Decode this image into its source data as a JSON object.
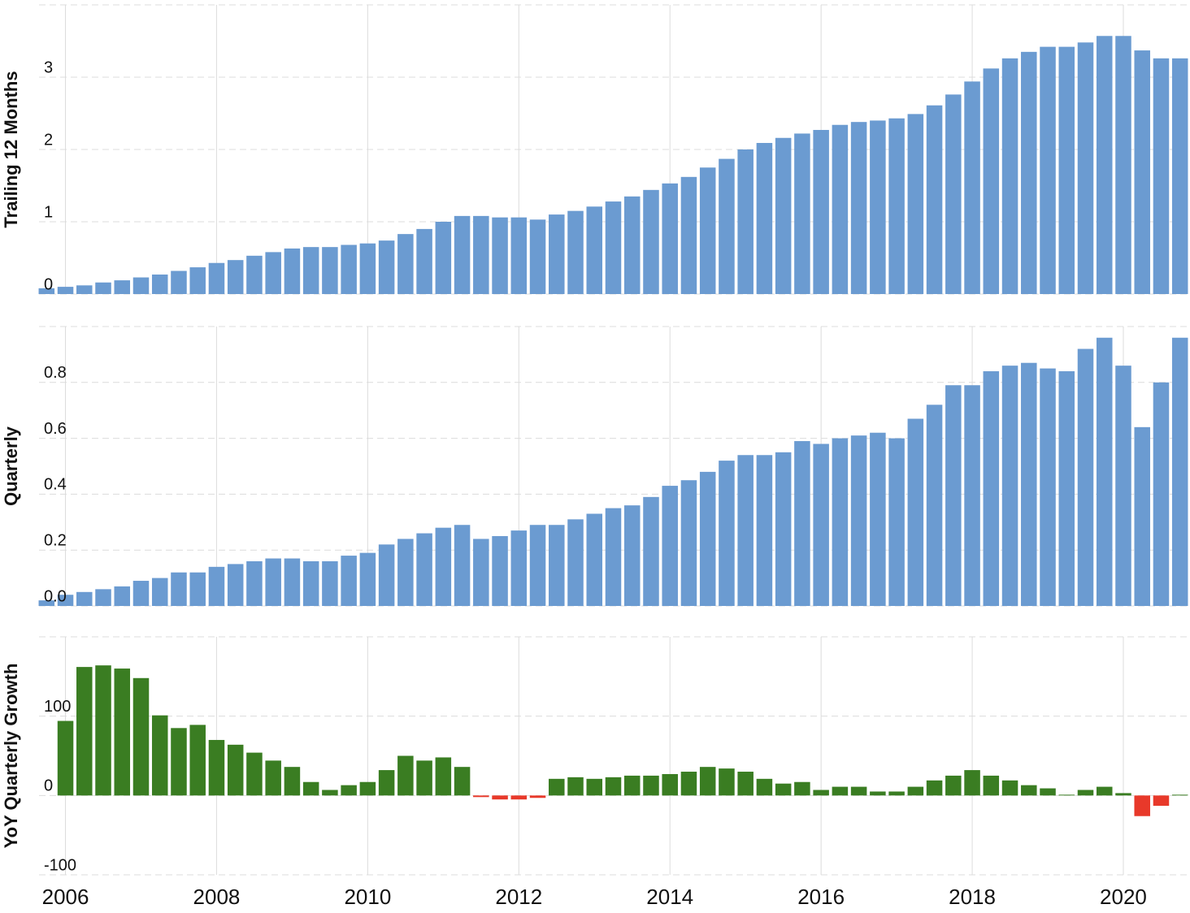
{
  "chart_data": [
    {
      "type": "bar",
      "y_label": "Trailing 12 Months",
      "color": "#6b9bd1",
      "grid": true,
      "x": [
        2005.75,
        2006,
        2006.25,
        2006.5,
        2006.75,
        2007,
        2007.25,
        2007.5,
        2007.75,
        2008,
        2008.25,
        2008.5,
        2008.75,
        2009,
        2009.25,
        2009.5,
        2009.75,
        2010,
        2010.25,
        2010.5,
        2010.75,
        2011,
        2011.25,
        2011.5,
        2011.75,
        2012,
        2012.25,
        2012.5,
        2012.75,
        2013,
        2013.25,
        2013.5,
        2013.75,
        2014,
        2014.25,
        2014.5,
        2014.75,
        2015,
        2015.25,
        2015.5,
        2015.75,
        2016,
        2016.25,
        2016.5,
        2016.75,
        2017,
        2017.25,
        2017.5,
        2017.75,
        2018,
        2018.25,
        2018.5,
        2018.75,
        2019,
        2019.25,
        2019.5,
        2019.75,
        2020,
        2020.25,
        2020.5,
        2020.75
      ],
      "values": [
        0.08,
        0.1,
        0.12,
        0.16,
        0.19,
        0.23,
        0.27,
        0.32,
        0.37,
        0.43,
        0.47,
        0.53,
        0.58,
        0.63,
        0.65,
        0.65,
        0.68,
        0.7,
        0.74,
        0.83,
        0.9,
        1.0,
        1.08,
        1.08,
        1.06,
        1.06,
        1.03,
        1.1,
        1.15,
        1.21,
        1.28,
        1.35,
        1.44,
        1.53,
        1.62,
        1.75,
        1.87,
        2.0,
        2.09,
        2.16,
        2.22,
        2.27,
        2.34,
        2.38,
        2.4,
        2.43,
        2.49,
        2.61,
        2.76,
        2.94,
        3.12,
        3.26,
        3.35,
        3.42,
        3.42,
        3.48,
        3.57,
        3.57,
        3.37,
        3.26,
        3.26
      ],
      "xlim": [
        2005.65,
        2020.85
      ],
      "ylim": [
        0,
        4
      ],
      "yticks": [
        0,
        1,
        2,
        3
      ]
    },
    {
      "type": "bar",
      "y_label": "Quarterly",
      "color": "#6b9bd1",
      "grid": true,
      "x": [
        2005.75,
        2006,
        2006.25,
        2006.5,
        2006.75,
        2007,
        2007.25,
        2007.5,
        2007.75,
        2008,
        2008.25,
        2008.5,
        2008.75,
        2009,
        2009.25,
        2009.5,
        2009.75,
        2010,
        2010.25,
        2010.5,
        2010.75,
        2011,
        2011.25,
        2011.5,
        2011.75,
        2012,
        2012.25,
        2012.5,
        2012.75,
        2013,
        2013.25,
        2013.5,
        2013.75,
        2014,
        2014.25,
        2014.5,
        2014.75,
        2015,
        2015.25,
        2015.5,
        2015.75,
        2016,
        2016.25,
        2016.5,
        2016.75,
        2017,
        2017.25,
        2017.5,
        2017.75,
        2018,
        2018.25,
        2018.5,
        2018.75,
        2019,
        2019.25,
        2019.5,
        2019.75,
        2020,
        2020.25,
        2020.5,
        2020.75
      ],
      "values": [
        0.02,
        0.04,
        0.05,
        0.06,
        0.07,
        0.09,
        0.1,
        0.12,
        0.12,
        0.14,
        0.15,
        0.16,
        0.17,
        0.17,
        0.16,
        0.16,
        0.18,
        0.19,
        0.22,
        0.24,
        0.26,
        0.28,
        0.29,
        0.24,
        0.25,
        0.27,
        0.29,
        0.29,
        0.31,
        0.33,
        0.35,
        0.36,
        0.39,
        0.43,
        0.45,
        0.48,
        0.52,
        0.54,
        0.54,
        0.55,
        0.59,
        0.58,
        0.6,
        0.61,
        0.62,
        0.6,
        0.67,
        0.72,
        0.79,
        0.79,
        0.84,
        0.86,
        0.87,
        0.85,
        0.84,
        0.92,
        0.96,
        0.86,
        0.64,
        0.8,
        0.96
      ],
      "xlim": [
        2005.65,
        2020.85
      ],
      "ylim": [
        0,
        1
      ],
      "yticks": [
        {
          "value": 0,
          "label": "0.0"
        },
        0.2,
        0.4,
        0.6,
        0.8
      ]
    },
    {
      "type": "bar",
      "y_label": "YoY Quarterly Growth",
      "color": "#3a7d22",
      "negative_color": "#e8392a",
      "grid": true,
      "x": [
        2005.75,
        2006,
        2006.25,
        2006.5,
        2006.75,
        2007,
        2007.25,
        2007.5,
        2007.75,
        2008,
        2008.25,
        2008.5,
        2008.75,
        2009,
        2009.25,
        2009.5,
        2009.75,
        2010,
        2010.25,
        2010.5,
        2010.75,
        2011,
        2011.25,
        2011.5,
        2011.75,
        2012,
        2012.25,
        2012.5,
        2012.75,
        2013,
        2013.25,
        2013.5,
        2013.75,
        2014,
        2014.25,
        2014.5,
        2014.75,
        2015,
        2015.25,
        2015.5,
        2015.75,
        2016,
        2016.25,
        2016.5,
        2016.75,
        2017,
        2017.25,
        2017.5,
        2017.75,
        2018,
        2018.25,
        2018.5,
        2018.75,
        2019,
        2019.25,
        2019.5,
        2019.75,
        2020,
        2020.25,
        2020.5,
        2020.75
      ],
      "values": [
        null,
        94,
        162,
        164,
        160,
        148,
        101,
        85,
        89,
        70,
        64,
        54,
        44,
        36,
        17,
        7,
        13,
        17,
        32,
        50,
        44,
        48,
        36,
        -2,
        -5,
        -5,
        -3,
        21,
        23,
        21,
        23,
        25,
        25,
        27,
        30,
        36,
        34,
        30,
        21,
        15,
        17,
        7,
        11,
        11,
        5,
        5,
        11,
        19,
        25,
        32,
        25,
        19,
        13,
        9,
        1,
        7,
        11,
        3,
        -26,
        -13,
        1
      ],
      "xlim": [
        2005.65,
        2020.85
      ],
      "ylim": [
        -100,
        200
      ],
      "yticks": [
        -100,
        0,
        100
      ],
      "xticks": [
        2006,
        2008,
        2010,
        2012,
        2014,
        2016,
        2018,
        2020
      ]
    }
  ]
}
